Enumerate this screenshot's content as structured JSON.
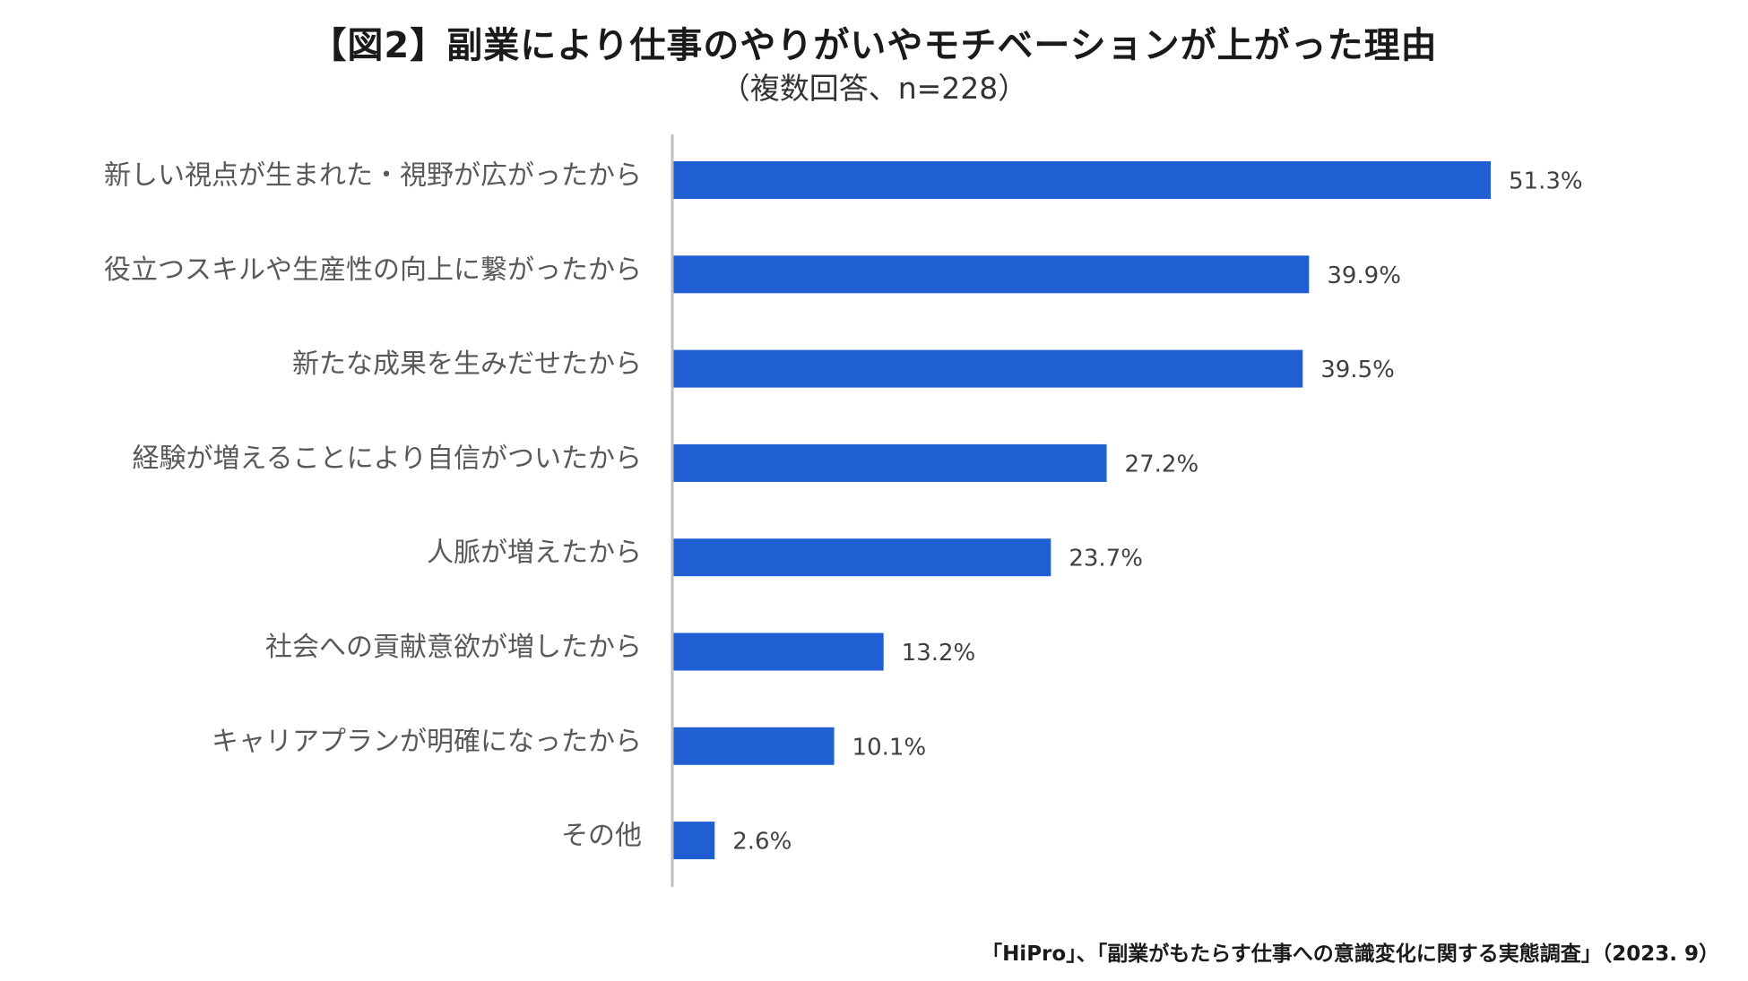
{
  "title": "【図2】副業により仕事のやりがいやモチベーションが上がった理由",
  "subtitle": "（複数回答、n=228）",
  "source": "「HiPro」、「副業がもたらす仕事への意識変化に関する実態調査」（2023. 9）",
  "colors": {
    "bar": "#1F5ED3",
    "axis": "#BFBFBF"
  },
  "chart_data": {
    "type": "bar",
    "orientation": "horizontal",
    "categories": [
      "新しい視点が生まれた・視野が広がったから",
      "役立つスキルや生産性の向上に繋がったから",
      "新たな成果を生みだせたから",
      "経験が増えることにより自信がついたから",
      "人脈が増えたから",
      "社会への貢献意欲が増したから",
      "キャリアプランが明確になったから",
      "その他"
    ],
    "values": [
      51.3,
      39.9,
      39.5,
      27.2,
      23.7,
      13.2,
      10.1,
      2.6
    ],
    "value_labels": [
      "51.3%",
      "39.9%",
      "39.5%",
      "27.2%",
      "23.7%",
      "13.2%",
      "10.1%",
      "2.6%"
    ],
    "unit": "%",
    "xlim": [
      0,
      60
    ],
    "grid": false,
    "legend": "none"
  }
}
